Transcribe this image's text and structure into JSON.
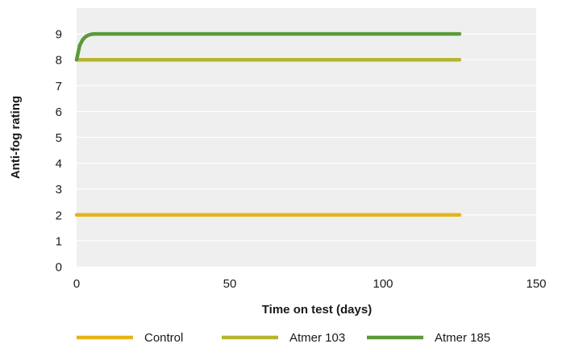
{
  "chart_data": {
    "type": "line",
    "title": "",
    "xlabel": "Time on test (days)",
    "ylabel": "Anti-fog rating",
    "xlim": [
      0,
      150
    ],
    "ylim": [
      0,
      10
    ],
    "x_ticks": [
      0,
      50,
      100,
      150
    ],
    "y_ticks": [
      0,
      1,
      2,
      3,
      4,
      5,
      6,
      7,
      8,
      9
    ],
    "grid": "horizontal",
    "legend_position": "bottom",
    "background_color": "#efefef",
    "gridline_color": "#ffffff",
    "series": [
      {
        "name": "Control",
        "color": "#e5b417",
        "x": [
          0,
          125
        ],
        "y": [
          2,
          2
        ]
      },
      {
        "name": "Atmer 103",
        "color": "#b6b52f",
        "x": [
          0,
          125
        ],
        "y": [
          8,
          8
        ]
      },
      {
        "name": "Atmer 185",
        "color": "#5b9a3a",
        "x": [
          0,
          1,
          2,
          3,
          4,
          5,
          6,
          8,
          10,
          125
        ],
        "y": [
          8,
          8.55,
          8.78,
          8.9,
          8.96,
          8.99,
          9,
          9,
          9,
          9
        ]
      }
    ]
  }
}
